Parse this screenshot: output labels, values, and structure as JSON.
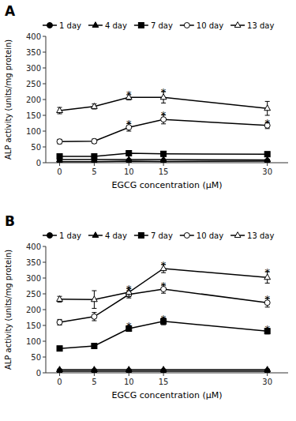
{
  "chart_data": [
    {
      "type": "line",
      "title": "A",
      "x": [
        0,
        5,
        10,
        15,
        30
      ],
      "xlim": [
        -2,
        33
      ],
      "xticks": [
        0,
        5,
        10,
        15,
        30
      ],
      "ylim": [
        0,
        400
      ],
      "yticks": [
        0,
        50,
        100,
        150,
        200,
        250,
        300,
        350,
        400
      ],
      "xlabel": "EGCG concentration (μM)",
      "ylabel": "ALP activity (units/mg protein)",
      "grid": false,
      "legend": "upper left",
      "series": [
        {
          "name": "1 day",
          "color": "#000000",
          "marker": "circle",
          "values": [
            3,
            3,
            5,
            4,
            5
          ],
          "yerr": [
            1.0,
            1.0,
            1.0,
            1.0,
            1.0
          ]
        },
        {
          "name": "4 day",
          "color": "#000000",
          "marker": "triangle",
          "values": [
            10,
            10,
            10,
            10,
            9
          ],
          "yerr": [
            2.0,
            2.0,
            2.0,
            2.0,
            2.0
          ]
        },
        {
          "name": "7 day",
          "color": "#000000",
          "marker": "square",
          "values": [
            20,
            20,
            30,
            28,
            27
          ],
          "yerr": [
            3.0,
            3.0,
            4.0,
            4.0,
            3.0
          ]
        },
        {
          "name": "10 day",
          "color": "#000000",
          "marker": "circle-open",
          "values": [
            67,
            68,
            112,
            137,
            118
          ],
          "yerr": [
            7.0,
            7.0,
            12.0,
            14.0,
            10.0
          ]
        },
        {
          "name": "13 day",
          "color": "#000000",
          "marker": "triangle-open",
          "values": [
            165,
            178,
            207,
            207,
            172
          ],
          "yerr": [
            10.0,
            8.0,
            8.0,
            18.0,
            22.0
          ]
        }
      ],
      "annotations": [
        {
          "text": "*",
          "x": 10,
          "y": 222
        },
        {
          "text": "*",
          "x": 10,
          "y": 130
        },
        {
          "text": "*",
          "x": 15,
          "y": 230
        },
        {
          "text": "*",
          "x": 15,
          "y": 157
        },
        {
          "text": "*",
          "x": 30,
          "y": 133
        }
      ]
    },
    {
      "type": "line",
      "title": "B",
      "x": [
        0,
        5,
        10,
        15,
        30
      ],
      "xlim": [
        -2,
        33
      ],
      "xticks": [
        0,
        5,
        10,
        15,
        30
      ],
      "ylim": [
        0,
        400
      ],
      "yticks": [
        0,
        50,
        100,
        150,
        200,
        250,
        300,
        350,
        400
      ],
      "xlabel": "EGCG concentration (μM)",
      "ylabel": "ALP activity (units/mg protein)",
      "grid": false,
      "legend": "upper left",
      "series": [
        {
          "name": "1 day",
          "color": "#000000",
          "marker": "circle",
          "values": [
            5,
            5,
            5,
            5,
            5
          ],
          "yerr": [
            1.0,
            1.0,
            1.0,
            1.0,
            1.0
          ]
        },
        {
          "name": "4 day",
          "color": "#000000",
          "marker": "triangle",
          "values": [
            10,
            10,
            10,
            10,
            10
          ],
          "yerr": [
            2.0,
            2.0,
            2.0,
            2.0,
            2.0
          ]
        },
        {
          "name": "7 day",
          "color": "#000000",
          "marker": "square",
          "values": [
            77,
            85,
            140,
            163,
            132
          ],
          "yerr": [
            5.0,
            7.0,
            9.0,
            11.0,
            9.0
          ]
        },
        {
          "name": "10 day",
          "color": "#000000",
          "marker": "circle-open",
          "values": [
            160,
            178,
            248,
            265,
            222
          ],
          "yerr": [
            9.0,
            13.0,
            11.0,
            13.0,
            14.0
          ]
        },
        {
          "name": "13 day",
          "color": "#000000",
          "marker": "triangle-open",
          "values": [
            233,
            232,
            255,
            330,
            302
          ],
          "yerr": [
            9.0,
            28.0,
            13.0,
            13.0,
            18.0
          ]
        }
      ],
      "annotations": [
        {
          "text": "*",
          "x": 10,
          "y": 272
        },
        {
          "text": "*",
          "x": 10,
          "y": 265
        },
        {
          "text": "*",
          "x": 10,
          "y": 155
        },
        {
          "text": "*",
          "x": 15,
          "y": 348
        },
        {
          "text": "*",
          "x": 15,
          "y": 282
        },
        {
          "text": "*",
          "x": 15,
          "y": 178
        },
        {
          "text": "*",
          "x": 30,
          "y": 324
        },
        {
          "text": "*",
          "x": 30,
          "y": 240
        },
        {
          "text": "*",
          "x": 30,
          "y": 145
        }
      ]
    }
  ]
}
